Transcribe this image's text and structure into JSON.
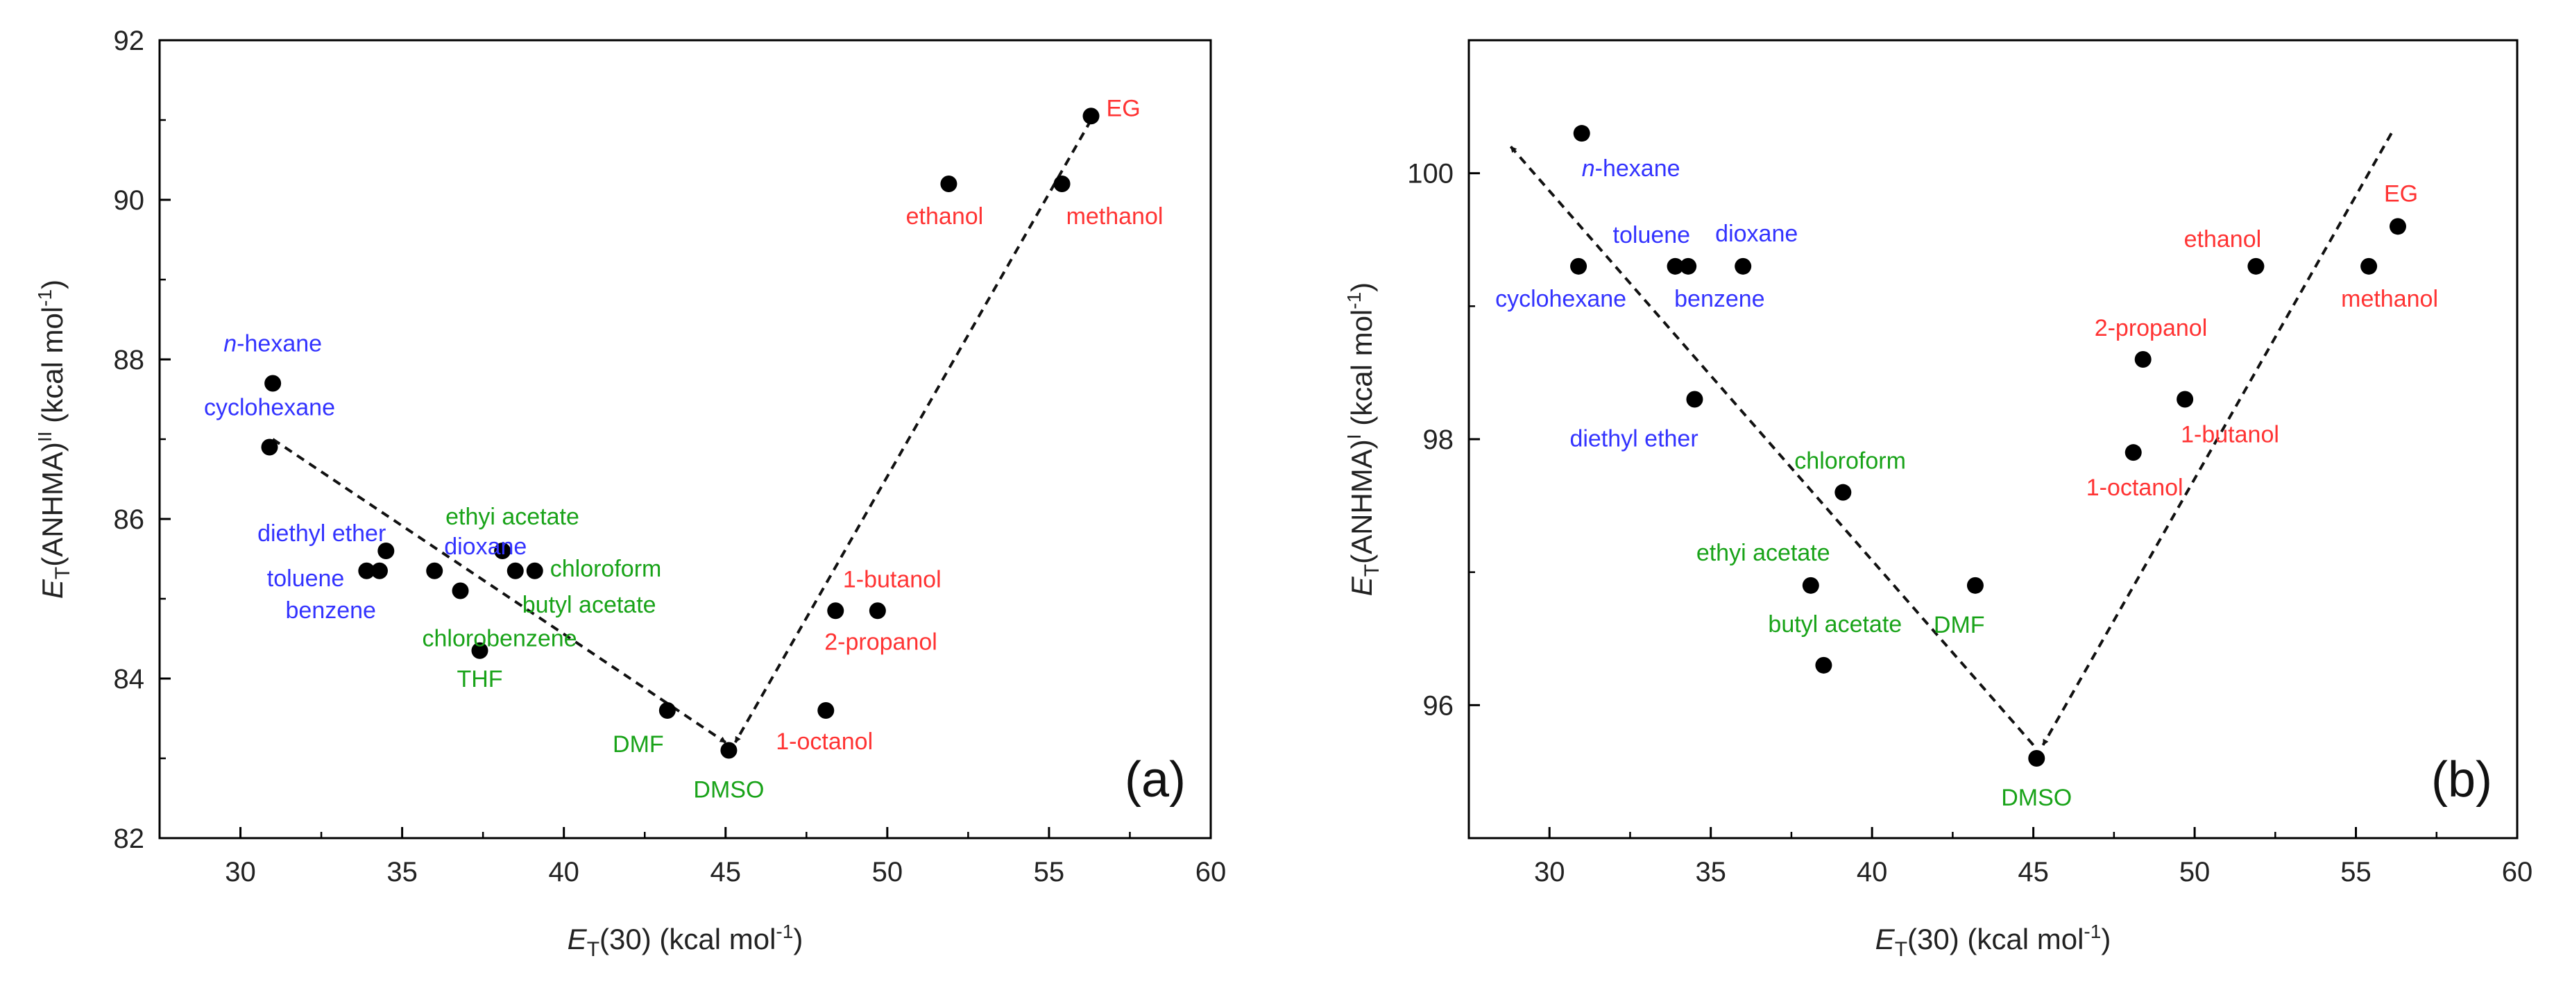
{
  "chart_data": [
    {
      "type": "scatter",
      "panel_label": "(a)",
      "ylabel_main": "E",
      "ylabel_sub": "T",
      "ylabel_rest": "(ANHMA)",
      "ylabel_sup": "II",
      "ylabel_unit": " (kcal mol",
      "ylabel_unit_sup": "-1",
      "ylabel_close": ")",
      "xlabel_main": "E",
      "xlabel_sub": "T",
      "xlabel_rest": "(30) (kcal mol",
      "xlabel_sup": "-1",
      "xlabel_close": ")",
      "xlim": [
        27.5,
        60
      ],
      "ylim": [
        82,
        92
      ],
      "xticks": [
        30,
        35,
        40,
        45,
        50,
        55,
        60
      ],
      "yticks": [
        82,
        84,
        86,
        88,
        90,
        92
      ],
      "minor_x": 2.5,
      "minor_y": 1,
      "colors": {
        "nonpolar": "#3333ff",
        "aprotic": "#19a319",
        "protic": "#ff3333"
      },
      "points": [
        {
          "name": "n-hexane",
          "italic": "n",
          "rest": "-hexane",
          "x": 31.0,
          "y": 87.7,
          "cls": "nonpolar"
        },
        {
          "name": "cyclohexane",
          "x": 30.9,
          "y": 86.9,
          "cls": "nonpolar"
        },
        {
          "name": "toluene",
          "x": 33.9,
          "y": 85.35,
          "cls": "nonpolar"
        },
        {
          "name": "benzene",
          "x": 34.3,
          "y": 85.35,
          "cls": "nonpolar"
        },
        {
          "name": "diethyl ether",
          "x": 34.5,
          "y": 85.6,
          "cls": "nonpolar"
        },
        {
          "name": "dioxane",
          "x": 36.0,
          "y": 85.35,
          "cls": "nonpolar"
        },
        {
          "name": "chlorobenzene",
          "x": 36.8,
          "y": 85.1,
          "cls": "aprotic"
        },
        {
          "name": "THF",
          "x": 37.4,
          "y": 84.35,
          "cls": "aprotic"
        },
        {
          "name": "ethyi acetate",
          "x": 38.1,
          "y": 85.6,
          "cls": "aprotic"
        },
        {
          "name": "butyl acetate",
          "x": 38.5,
          "y": 85.35,
          "cls": "aprotic"
        },
        {
          "name": "chloroform",
          "x": 39.1,
          "y": 85.35,
          "cls": "aprotic"
        },
        {
          "name": "DMF",
          "x": 43.2,
          "y": 83.6,
          "cls": "aprotic"
        },
        {
          "name": "DMSO",
          "x": 45.1,
          "y": 83.1,
          "cls": "aprotic"
        },
        {
          "name": "1-octanol",
          "x": 48.1,
          "y": 83.6,
          "cls": "protic"
        },
        {
          "name": "2-propanol",
          "x": 48.4,
          "y": 84.85,
          "cls": "protic"
        },
        {
          "name": "1-butanol",
          "x": 49.7,
          "y": 84.85,
          "cls": "protic"
        },
        {
          "name": "ethanol",
          "x": 51.9,
          "y": 90.2,
          "cls": "protic"
        },
        {
          "name": "methanol",
          "x": 55.4,
          "y": 90.2,
          "cls": "protic"
        },
        {
          "name": "EG",
          "x": 56.3,
          "y": 91.05,
          "cls": "protic"
        }
      ],
      "arrows": [
        {
          "from": [
            31.0,
            87.0
          ],
          "to": [
            45.0,
            83.2
          ]
        },
        {
          "from": [
            56.3,
            91.0
          ],
          "to": [
            45.3,
            83.2
          ]
        }
      ]
    },
    {
      "type": "scatter",
      "panel_label": "(b)",
      "ylabel_main": "E",
      "ylabel_sub": "T",
      "ylabel_rest": "(ANHMA)",
      "ylabel_sup": "I",
      "ylabel_unit": " (kcal mol",
      "ylabel_unit_sup": "-1",
      "ylabel_close": ")",
      "xlabel_main": "E",
      "xlabel_sub": "T",
      "xlabel_rest": "(30) (kcal mol",
      "xlabel_sup": "-1",
      "xlabel_close": ")",
      "xlim": [
        27.5,
        60
      ],
      "ylim": [
        95,
        101
      ],
      "xticks": [
        30,
        35,
        40,
        45,
        50,
        55,
        60
      ],
      "yticks": [
        96,
        98,
        100
      ],
      "minor_x": 2.5,
      "minor_y": 1,
      "colors": {
        "nonpolar": "#3333ff",
        "aprotic": "#19a319",
        "protic": "#ff3333"
      },
      "points": [
        {
          "name": "n-hexane",
          "italic": "n",
          "rest": "-hexane",
          "x": 31.0,
          "y": 100.3,
          "cls": "nonpolar"
        },
        {
          "name": "cyclohexane",
          "x": 30.9,
          "y": 99.3,
          "cls": "nonpolar"
        },
        {
          "name": "toluene",
          "x": 33.9,
          "y": 99.3,
          "cls": "nonpolar"
        },
        {
          "name": "benzene",
          "x": 34.3,
          "y": 99.3,
          "cls": "nonpolar"
        },
        {
          "name": "dioxane",
          "x": 36.0,
          "y": 99.3,
          "cls": "nonpolar"
        },
        {
          "name": "diethyl ether",
          "x": 34.5,
          "y": 98.3,
          "cls": "nonpolar"
        },
        {
          "name": "chloroform",
          "x": 39.1,
          "y": 97.6,
          "cls": "aprotic"
        },
        {
          "name": "ethyi acetate",
          "x": 38.1,
          "y": 96.9,
          "cls": "aprotic"
        },
        {
          "name": "butyl acetate",
          "x": 38.5,
          "y": 96.3,
          "cls": "aprotic"
        },
        {
          "name": "DMF",
          "x": 43.2,
          "y": 96.9,
          "cls": "aprotic"
        },
        {
          "name": "DMSO",
          "x": 45.1,
          "y": 95.6,
          "cls": "aprotic"
        },
        {
          "name": "ethanol",
          "x": 51.9,
          "y": 99.3,
          "cls": "protic"
        },
        {
          "name": "2-propanol",
          "x": 48.4,
          "y": 98.6,
          "cls": "protic"
        },
        {
          "name": "1-butanol",
          "x": 49.7,
          "y": 98.3,
          "cls": "protic"
        },
        {
          "name": "1-octanol",
          "x": 48.1,
          "y": 97.9,
          "cls": "protic"
        },
        {
          "name": "methanol",
          "x": 55.4,
          "y": 99.3,
          "cls": "protic"
        },
        {
          "name": "EG",
          "x": 56.3,
          "y": 99.6,
          "cls": "protic"
        }
      ],
      "arrows": [
        {
          "from": [
            45.0,
            95.7
          ],
          "to": [
            28.8,
            100.2
          ]
        },
        {
          "from": [
            56.1,
            100.3
          ],
          "to": [
            45.3,
            95.7
          ]
        }
      ]
    }
  ]
}
